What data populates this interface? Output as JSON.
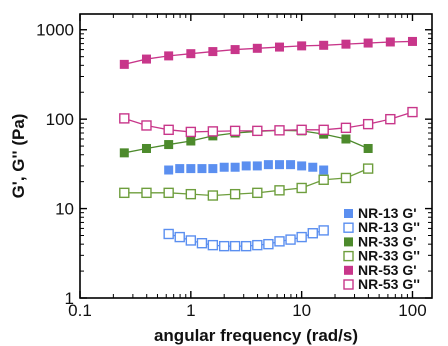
{
  "chart_data": {
    "type": "scatter",
    "title": "",
    "xlabel": "angular frequency (rad/s)",
    "ylabel": "G', G'' (Pa)",
    "xscale": "log",
    "yscale": "log",
    "xlim": [
      0.1,
      150
    ],
    "ylim": [
      1,
      1500
    ],
    "xticks": [
      0.1,
      1,
      10,
      100
    ],
    "xtick_labels": [
      "0.1",
      "1",
      "10",
      "100"
    ],
    "yticks": [
      1,
      10,
      100,
      1000
    ],
    "ytick_labels": [
      "1",
      "10",
      "100",
      "1000"
    ],
    "grid": false,
    "legend": "bottom-right",
    "series": [
      {
        "name": "NR-13 G'",
        "color": "#5b8ff0",
        "marker": "filled-square",
        "line": false,
        "x": [
          0.631,
          0.794,
          1.0,
          1.26,
          1.58,
          2.0,
          2.51,
          3.16,
          3.98,
          5.01,
          6.31,
          7.94,
          10.0,
          12.6,
          15.8
        ],
        "y": [
          27,
          28,
          28,
          28,
          28,
          29,
          29,
          30,
          30,
          31,
          31,
          31,
          30,
          29,
          27
        ]
      },
      {
        "name": "NR-13 G''",
        "color": "#5b8ff0",
        "marker": "open-square",
        "line": true,
        "x": [
          0.631,
          0.794,
          1.0,
          1.26,
          1.58,
          2.0,
          2.51,
          3.16,
          3.98,
          5.01,
          6.31,
          7.94,
          10.0,
          12.6,
          15.8
        ],
        "y": [
          5.2,
          4.8,
          4.4,
          4.1,
          3.9,
          3.8,
          3.8,
          3.8,
          3.9,
          4.0,
          4.3,
          4.5,
          4.8,
          5.3,
          5.7
        ]
      },
      {
        "name": "NR-33 G'",
        "color": "#4d8a2c",
        "marker": "filled-square",
        "line": true,
        "x": [
          0.251,
          0.398,
          0.631,
          1.0,
          1.58,
          2.51,
          3.98,
          6.31,
          10.0,
          15.8,
          25.1,
          39.8
        ],
        "y": [
          42,
          47,
          52,
          57,
          65,
          70,
          73,
          75,
          74,
          68,
          60,
          47
        ]
      },
      {
        "name": "NR-33 G''",
        "color": "#6e9e3d",
        "marker": "open-square",
        "line": true,
        "x": [
          0.251,
          0.398,
          0.631,
          1.0,
          1.58,
          2.51,
          3.98,
          6.31,
          10.0,
          15.8,
          25.1,
          39.8
        ],
        "y": [
          15,
          15,
          15,
          14.5,
          14,
          14.5,
          15,
          16,
          17,
          21,
          22,
          28
        ]
      },
      {
        "name": "NR-53 G'",
        "color": "#c8368a",
        "marker": "filled-square",
        "line": true,
        "x": [
          0.251,
          0.398,
          0.631,
          1.0,
          1.58,
          2.51,
          3.98,
          6.31,
          10.0,
          15.8,
          25.1,
          39.8,
          63.1,
          100
        ],
        "y": [
          410,
          470,
          510,
          540,
          570,
          600,
          620,
          640,
          660,
          670,
          690,
          710,
          730,
          740
        ]
      },
      {
        "name": "NR-53 G''",
        "color": "#c8368a",
        "marker": "open-square",
        "line": true,
        "x": [
          0.251,
          0.398,
          0.631,
          1.0,
          1.58,
          2.51,
          3.98,
          6.31,
          10.0,
          15.8,
          25.1,
          39.8,
          63.1,
          100
        ],
        "y": [
          102,
          85,
          76,
          72,
          73,
          74,
          74,
          75,
          76,
          76,
          80,
          88,
          100,
          120
        ]
      }
    ]
  }
}
